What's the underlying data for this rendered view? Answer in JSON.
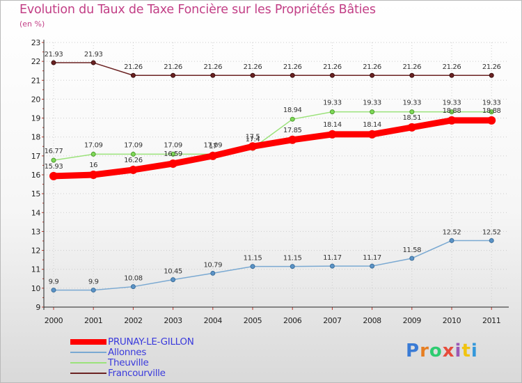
{
  "chart_data": {
    "type": "line",
    "title": "Evolution du Taux de Taxe Foncière sur les Propriétés Bâties",
    "unit_label": "(en %)",
    "xlabel": "",
    "ylabel": "",
    "ylim": [
      9,
      23
    ],
    "yticks": [
      9,
      10,
      11,
      12,
      13,
      14,
      15,
      16,
      17,
      18,
      19,
      20,
      21,
      22,
      23
    ],
    "x": [
      "2000",
      "2001",
      "2002",
      "2003",
      "2004",
      "2005",
      "2006",
      "2007",
      "2008",
      "2009",
      "2010",
      "2011"
    ],
    "series": [
      {
        "name": "Francourville",
        "color": "#6b2222",
        "values": [
          21.93,
          21.93,
          21.26,
          21.26,
          21.26,
          21.26,
          21.26,
          21.26,
          21.26,
          21.26,
          21.26,
          21.26
        ],
        "labels": [
          "21.93",
          "21.93",
          "21.26",
          "21.26",
          "21.26",
          "21.26",
          "21.26",
          "21.26",
          "21.26",
          "21.26",
          "21.26",
          "21.26"
        ]
      },
      {
        "name": "Theuville",
        "color": "#9be27a",
        "values": [
          16.77,
          17.09,
          17.09,
          17.09,
          17.09,
          17.4,
          18.94,
          19.33,
          19.33,
          19.33,
          19.33,
          19.33
        ],
        "labels": [
          "16.77",
          "17.09",
          "17.09",
          "17.09",
          "17.09",
          "17.4",
          "18.94",
          "19.33",
          "19.33",
          "19.33",
          "19.33",
          "19.33"
        ]
      },
      {
        "name": "Allonnes",
        "color": "#7aa9d2",
        "values": [
          9.9,
          9.9,
          10.08,
          10.45,
          10.79,
          11.15,
          11.15,
          11.17,
          11.17,
          11.58,
          12.52,
          12.52
        ],
        "labels": [
          "9.9",
          "9.9",
          "10.08",
          "10.45",
          "10.79",
          "11.15",
          "11.15",
          "11.17",
          "11.17",
          "11.58",
          "12.52",
          "12.52"
        ]
      },
      {
        "name": "PRUNAY-LE-GILLON",
        "color": "#ff0000",
        "values": [
          15.93,
          16,
          16.26,
          16.59,
          17,
          17.5,
          17.85,
          18.14,
          18.14,
          18.51,
          18.88,
          18.88
        ],
        "labels": [
          "15.93",
          "16",
          "16.26",
          "16.59",
          "17",
          "17.5",
          "17.85",
          "18.14",
          "18.14",
          "18.51",
          "18.88",
          "18.88"
        ]
      }
    ],
    "legend": [
      "PRUNAY-LE-GILLON",
      "Allonnes",
      "Theuville",
      "Francourville"
    ],
    "legend_position": "bottom-left"
  },
  "logo": {
    "text": "Proxiti",
    "colors": [
      "#3a7bd5",
      "#e67e22",
      "#2ecc71",
      "#e74c3c",
      "#9b59b6",
      "#f1c40f",
      "#3498db"
    ]
  }
}
